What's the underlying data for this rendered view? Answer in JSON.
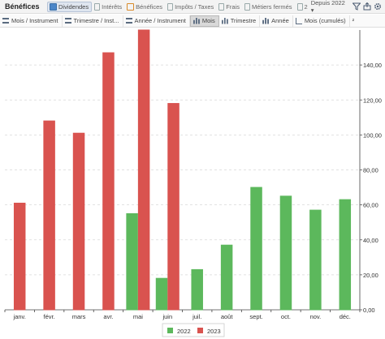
{
  "header": {
    "title": "Bénéfices",
    "tabs": [
      {
        "label": "Dividendes",
        "icon": "dividends-icon",
        "active": true
      },
      {
        "label": "Intérêts",
        "icon": "interest-icon",
        "active": false
      },
      {
        "label": "Bénéfices",
        "icon": "profits-icon",
        "active": false
      },
      {
        "label": "Impôts / Taxes",
        "icon": "taxes-icon",
        "active": false
      },
      {
        "label": "Frais",
        "icon": "fees-icon",
        "active": false
      },
      {
        "label": "Métiers fermés",
        "icon": "closed-trades-icon",
        "active": false
      },
      {
        "label": "2",
        "icon": "more-icon",
        "active": false
      }
    ],
    "since_label": "Depuis 2022",
    "dropdown_glyph": "▾"
  },
  "subtabs": [
    {
      "label": "Mois / Instrument",
      "icon": "list-icon",
      "active": false
    },
    {
      "label": "Trimestre / Inst...",
      "icon": "list-icon",
      "active": false
    },
    {
      "label": "Année / Instrument",
      "icon": "list-icon",
      "active": false
    },
    {
      "label": "Mois",
      "icon": "bar-chart-icon",
      "active": true
    },
    {
      "label": "Trimestre",
      "icon": "bar-chart-icon",
      "active": false
    },
    {
      "label": "Année",
      "icon": "bar-chart-icon",
      "active": false
    },
    {
      "label": "Mois (cumulés)",
      "icon": "line-chart-icon",
      "active": false
    }
  ],
  "subtab_extra": "²",
  "chart_data": {
    "type": "bar",
    "categories": [
      "janv.",
      "févr.",
      "mars",
      "avr.",
      "mai",
      "juin",
      "juil.",
      "août",
      "sept.",
      "oct.",
      "nov.",
      "déc."
    ],
    "series": [
      {
        "name": "2022",
        "color": "#5cb85c",
        "values": [
          null,
          null,
          null,
          null,
          55,
          18,
          23,
          37,
          70,
          65,
          57,
          63
        ]
      },
      {
        "name": "2023",
        "color": "#d9534f",
        "values": [
          61,
          108,
          101,
          147,
          160,
          118,
          null,
          null,
          null,
          null,
          null,
          null
        ]
      }
    ],
    "y_ticks": [
      "0,00",
      "20,00",
      "40,00",
      "60,00",
      "80,00",
      "100,00",
      "120,00",
      "140,00"
    ],
    "ylim": [
      0,
      160
    ],
    "grid": true,
    "legend_position": "bottom"
  }
}
